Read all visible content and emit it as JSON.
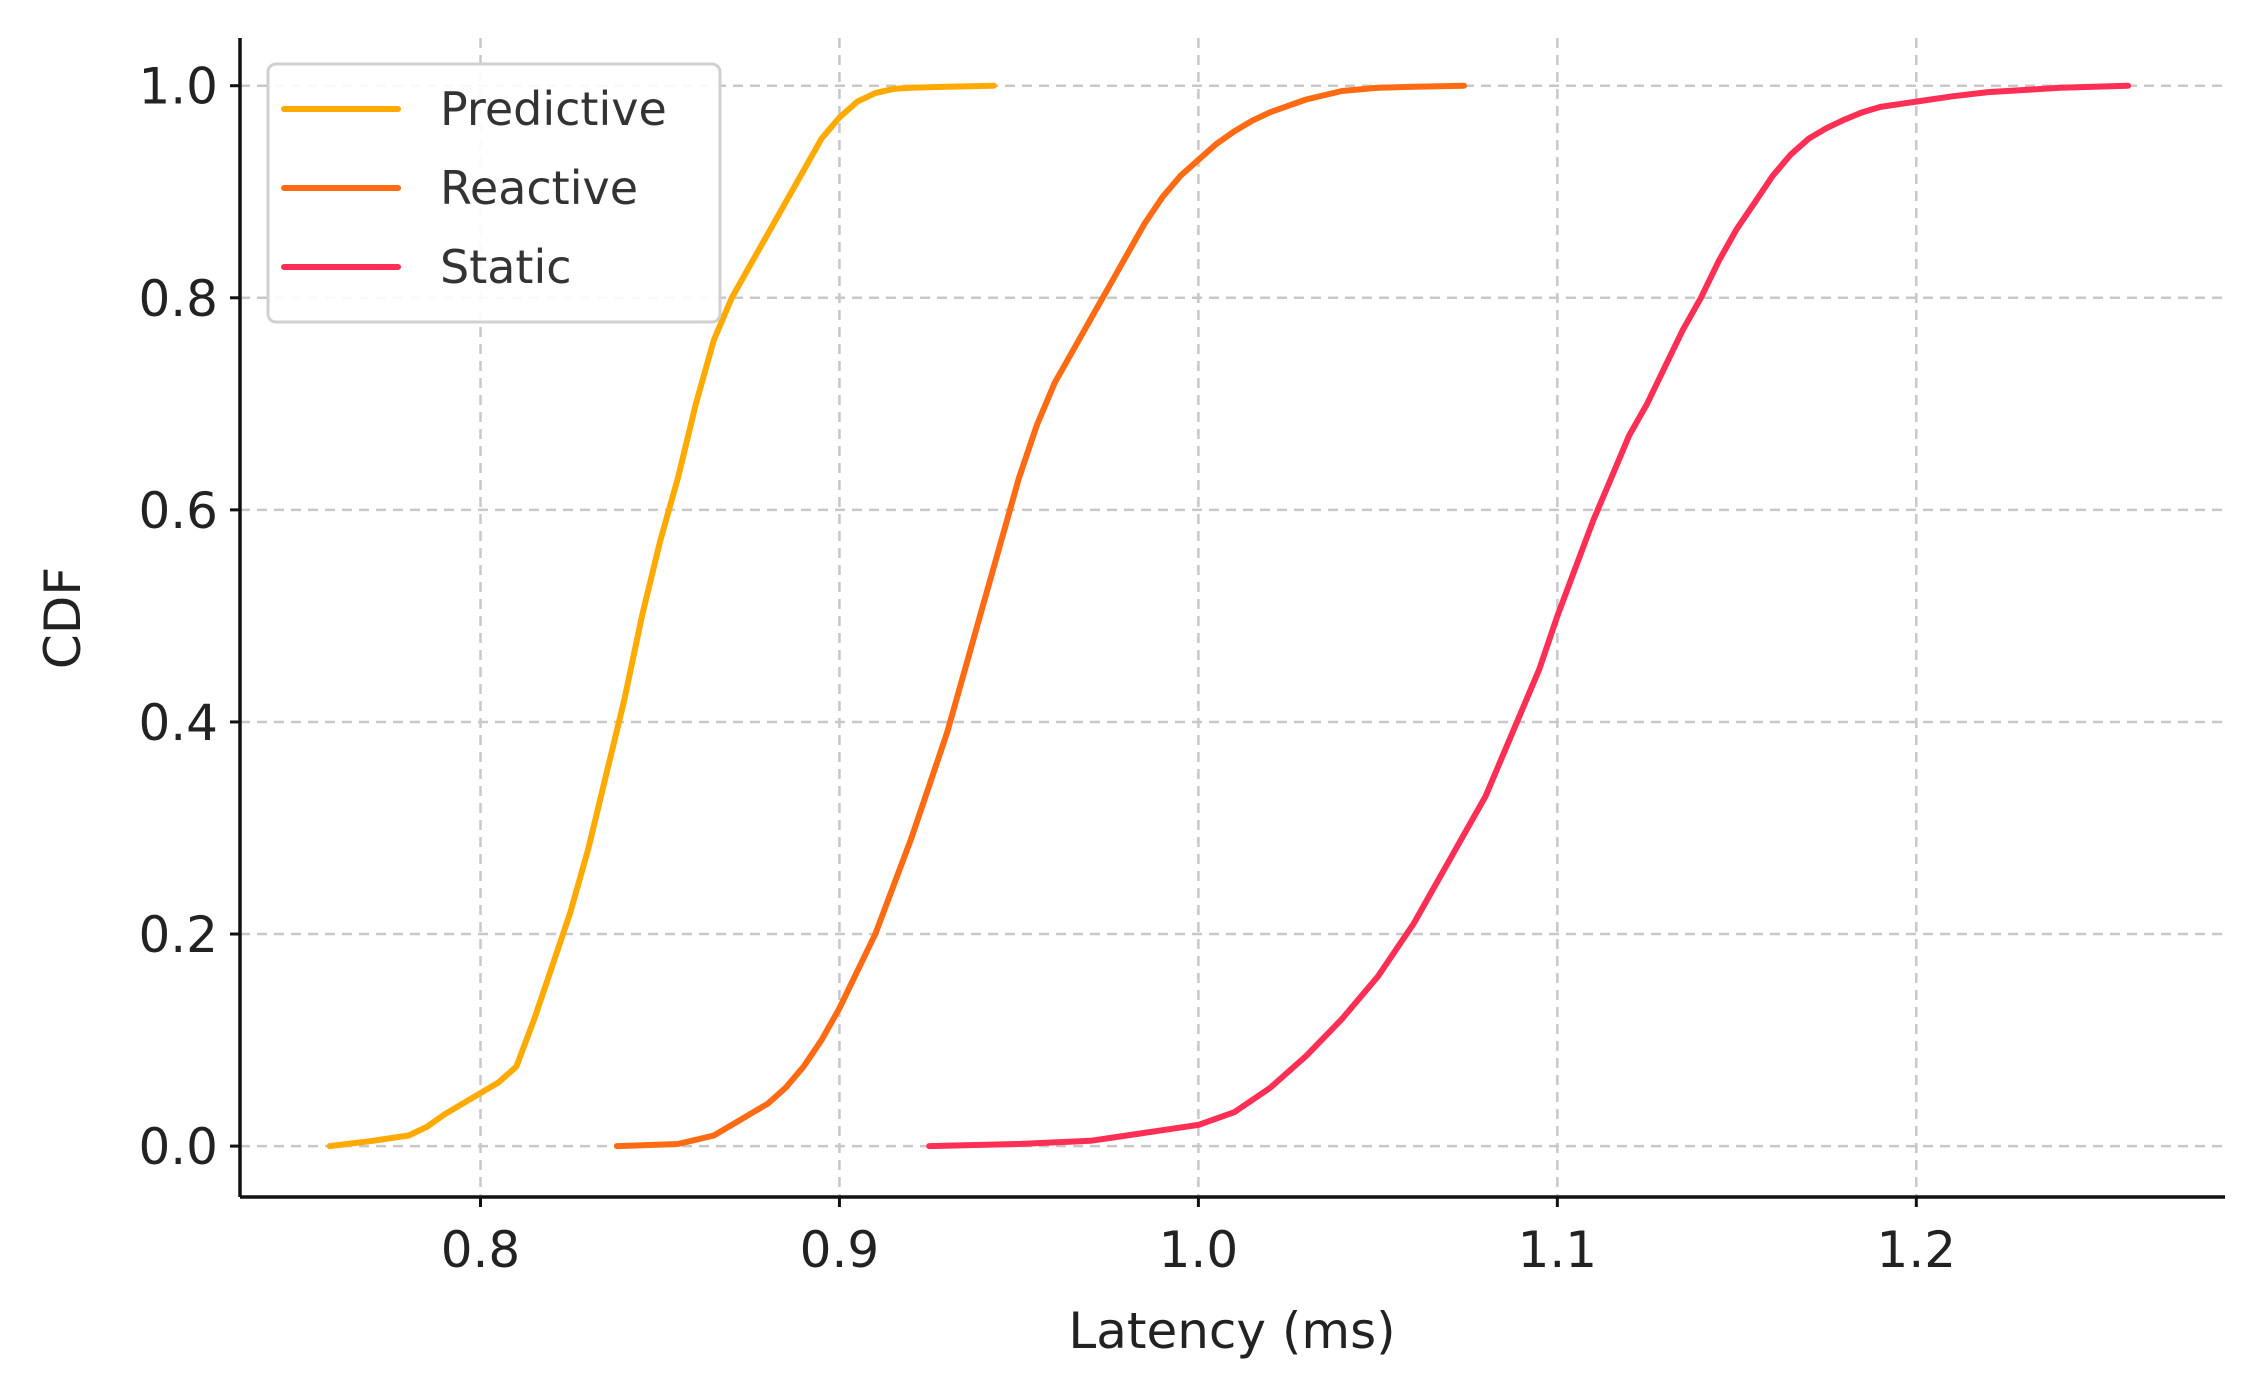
{
  "chart_data": {
    "type": "line",
    "title": "",
    "xlabel": "Latency (ms)",
    "ylabel": "CDF",
    "xlim": [
      0.733,
      1.286
    ],
    "ylim": [
      -0.048,
      1.045
    ],
    "xticks": [
      0.8,
      0.9,
      1.0,
      1.1,
      1.2
    ],
    "xtick_labels": [
      "0.8",
      "0.9",
      "1.0",
      "1.1",
      "1.2"
    ],
    "yticks": [
      0.0,
      0.2,
      0.4,
      0.6,
      0.8,
      1.0
    ],
    "ytick_labels": [
      "0.0",
      "0.2",
      "0.4",
      "0.6",
      "0.8",
      "1.0"
    ],
    "grid": true,
    "legend_position": "top-left",
    "series": [
      {
        "name": "Predictive",
        "color": "#FFAA00",
        "x": [
          0.758,
          0.77,
          0.78,
          0.785,
          0.79,
          0.795,
          0.8,
          0.805,
          0.81,
          0.815,
          0.82,
          0.825,
          0.83,
          0.835,
          0.84,
          0.845,
          0.85,
          0.855,
          0.86,
          0.865,
          0.87,
          0.875,
          0.88,
          0.885,
          0.89,
          0.895,
          0.9,
          0.905,
          0.91,
          0.915,
          0.92,
          0.93,
          0.943
        ],
        "y": [
          0.0,
          0.005,
          0.01,
          0.018,
          0.03,
          0.04,
          0.05,
          0.06,
          0.075,
          0.12,
          0.17,
          0.22,
          0.28,
          0.35,
          0.42,
          0.5,
          0.57,
          0.63,
          0.7,
          0.76,
          0.8,
          0.83,
          0.86,
          0.89,
          0.92,
          0.95,
          0.97,
          0.985,
          0.993,
          0.997,
          0.998,
          0.999,
          1.0
        ]
      },
      {
        "name": "Reactive",
        "color": "#FF6A13",
        "x": [
          0.838,
          0.855,
          0.865,
          0.87,
          0.875,
          0.88,
          0.885,
          0.89,
          0.895,
          0.9,
          0.905,
          0.91,
          0.915,
          0.92,
          0.925,
          0.93,
          0.935,
          0.94,
          0.945,
          0.95,
          0.955,
          0.96,
          0.965,
          0.97,
          0.975,
          0.98,
          0.985,
          0.99,
          0.995,
          1.0,
          1.005,
          1.01,
          1.015,
          1.02,
          1.03,
          1.04,
          1.05,
          1.06,
          1.074
        ],
        "y": [
          0.0,
          0.002,
          0.01,
          0.02,
          0.03,
          0.04,
          0.055,
          0.075,
          0.1,
          0.13,
          0.165,
          0.2,
          0.245,
          0.29,
          0.34,
          0.39,
          0.45,
          0.51,
          0.57,
          0.63,
          0.68,
          0.72,
          0.75,
          0.78,
          0.81,
          0.84,
          0.87,
          0.895,
          0.915,
          0.93,
          0.945,
          0.957,
          0.967,
          0.975,
          0.987,
          0.995,
          0.998,
          0.999,
          1.0
        ]
      },
      {
        "name": "Static",
        "color": "#FF2E55",
        "x": [
          0.925,
          0.95,
          0.97,
          0.98,
          0.99,
          1.0,
          1.01,
          1.02,
          1.03,
          1.04,
          1.05,
          1.06,
          1.065,
          1.07,
          1.075,
          1.08,
          1.085,
          1.09,
          1.095,
          1.1,
          1.105,
          1.11,
          1.115,
          1.12,
          1.125,
          1.13,
          1.135,
          1.14,
          1.145,
          1.15,
          1.155,
          1.16,
          1.165,
          1.17,
          1.175,
          1.18,
          1.185,
          1.19,
          1.2,
          1.21,
          1.22,
          1.23,
          1.24,
          1.259
        ],
        "y": [
          0.0,
          0.002,
          0.005,
          0.01,
          0.015,
          0.02,
          0.032,
          0.055,
          0.085,
          0.12,
          0.16,
          0.21,
          0.24,
          0.27,
          0.3,
          0.33,
          0.37,
          0.41,
          0.45,
          0.5,
          0.545,
          0.59,
          0.63,
          0.67,
          0.7,
          0.735,
          0.77,
          0.8,
          0.835,
          0.865,
          0.89,
          0.915,
          0.935,
          0.95,
          0.96,
          0.968,
          0.975,
          0.98,
          0.985,
          0.99,
          0.994,
          0.996,
          0.998,
          1.0
        ]
      }
    ]
  }
}
